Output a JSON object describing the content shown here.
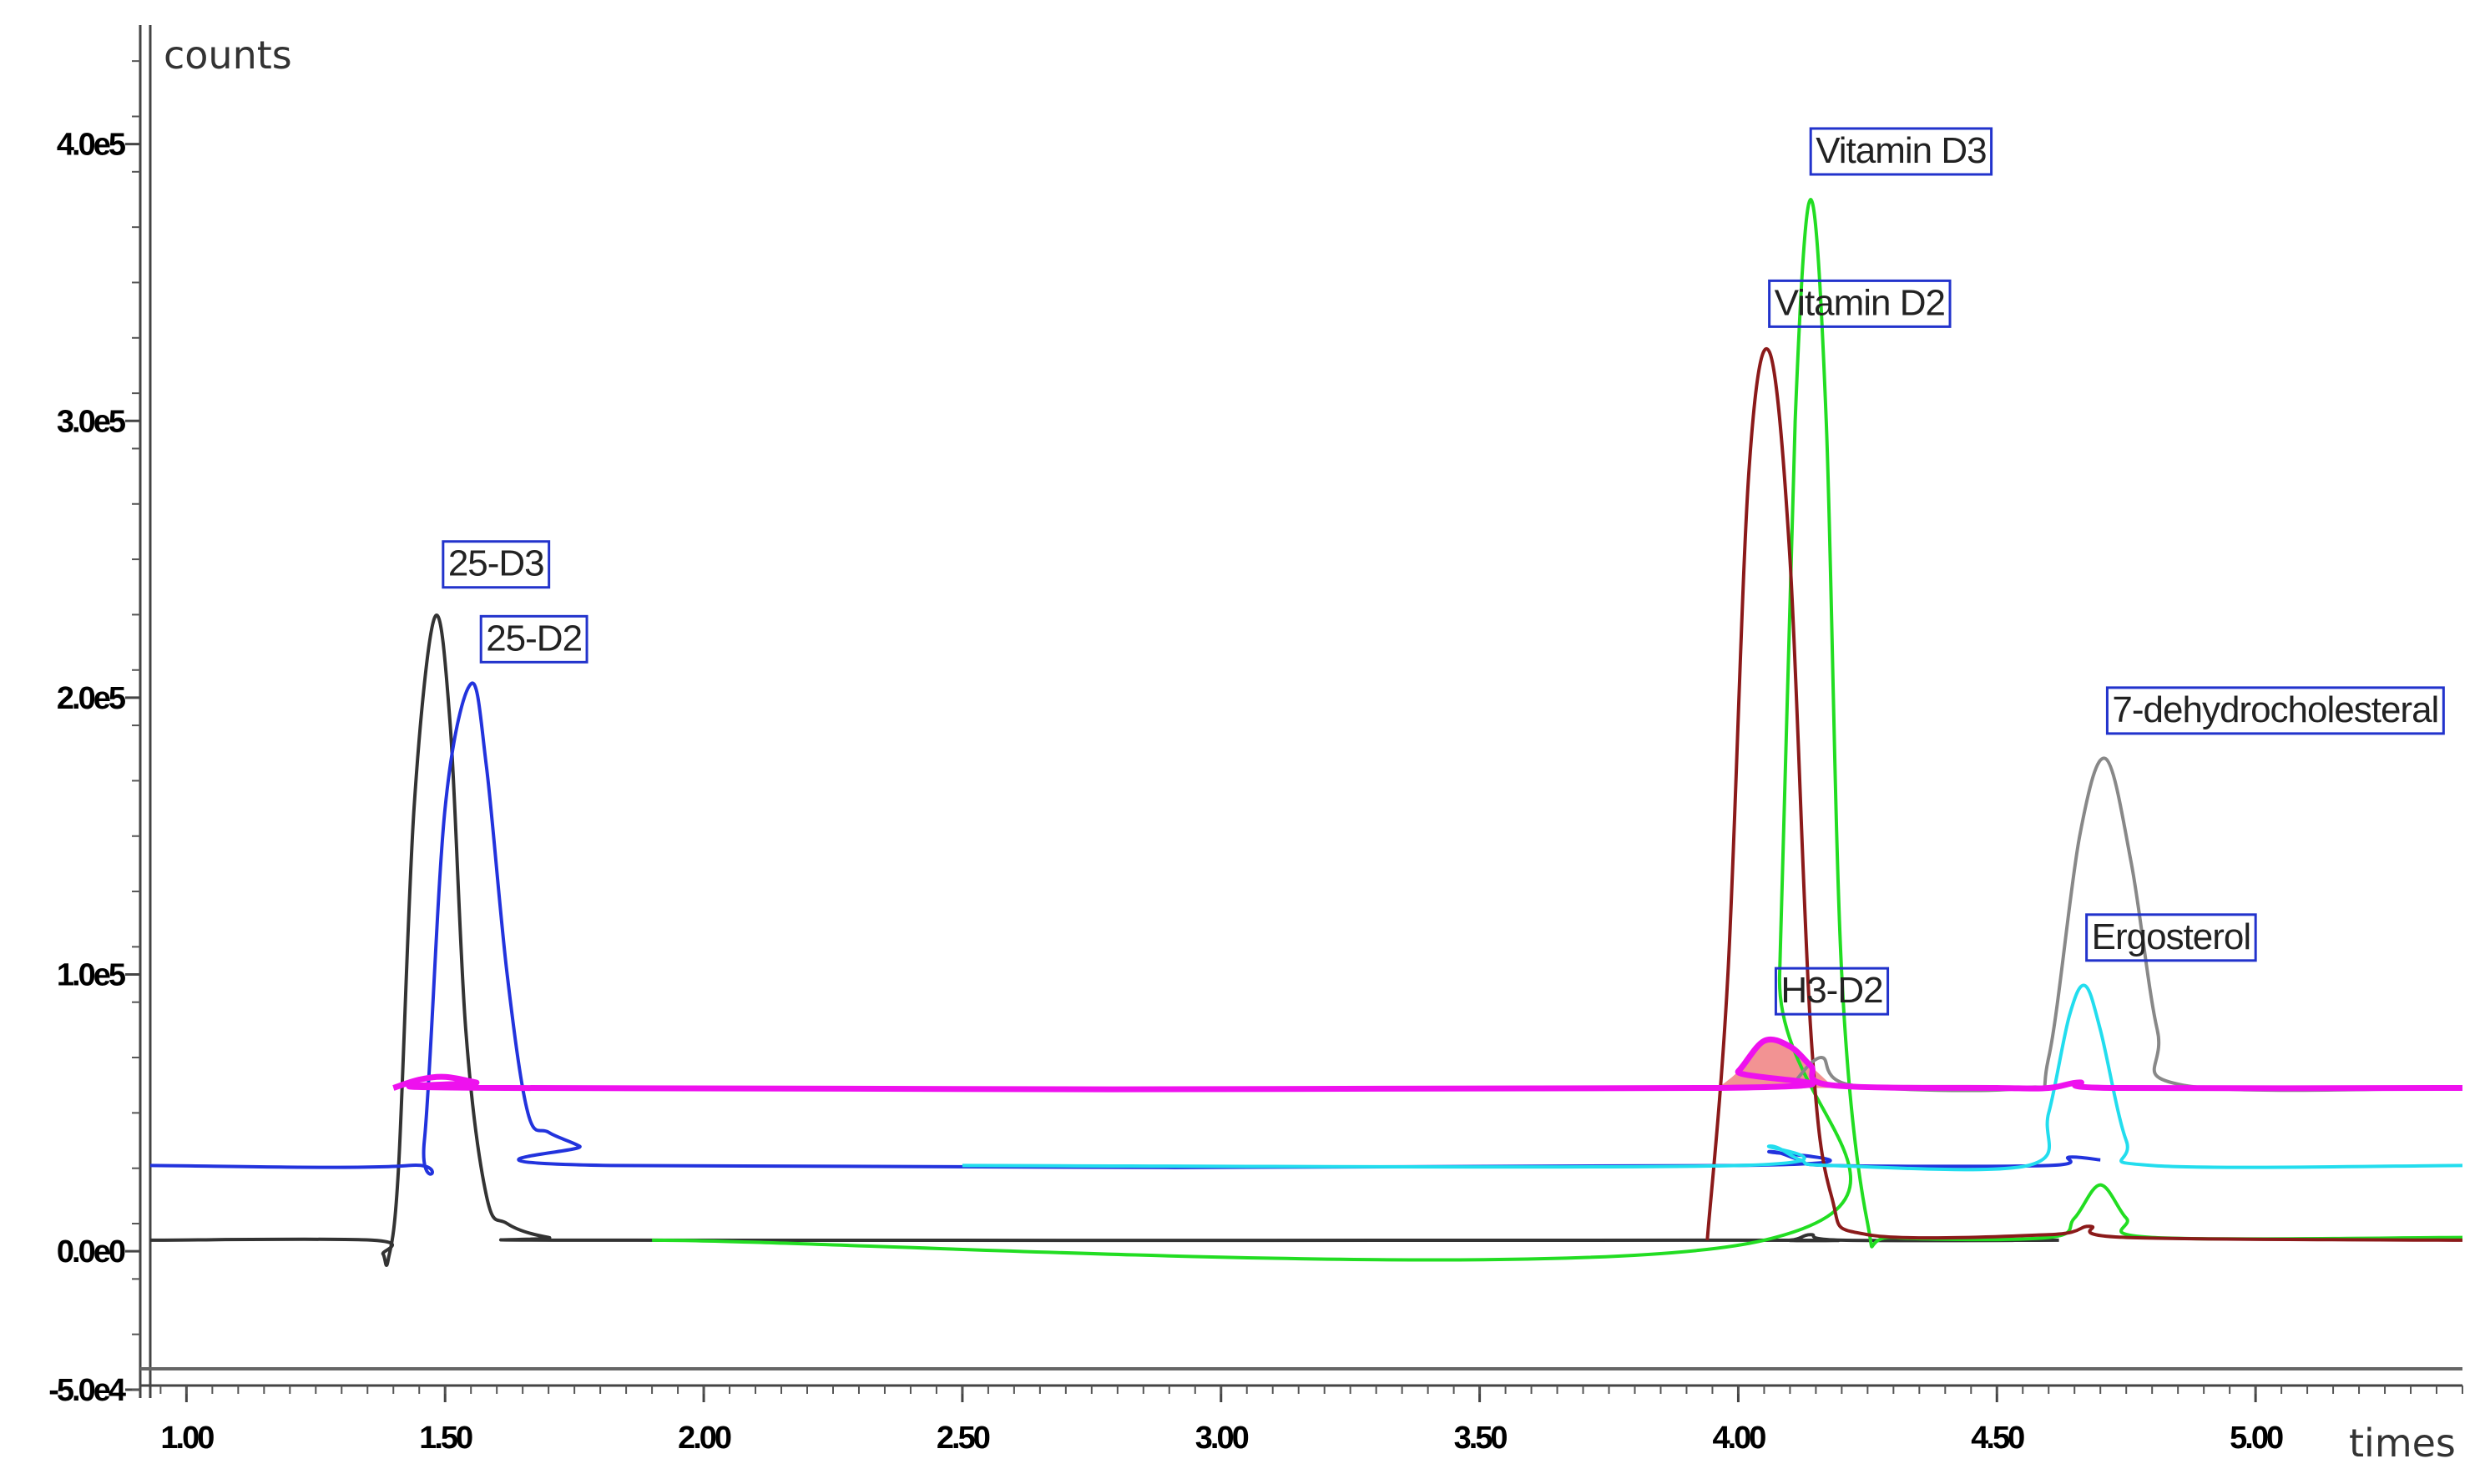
{
  "chart_data": {
    "type": "line",
    "title": "",
    "xlabel": "times",
    "ylabel": "counts",
    "xlim": [
      0.93,
      5.4
    ],
    "ylim": [
      -50000,
      440000
    ],
    "x_ticks": [
      1.0,
      1.5,
      2.0,
      2.5,
      3.0,
      3.5,
      4.0,
      4.5,
      5.0
    ],
    "x_tick_labels": [
      "1.00",
      "1.50",
      "2.00",
      "2.50",
      "3.00",
      "3.50",
      "4.00",
      "4.50",
      "5.00"
    ],
    "y_ticks": [
      -50000,
      0,
      100000,
      200000,
      300000,
      400000
    ],
    "y_tick_labels": [
      "-5.0e4",
      "0.0e0",
      "1.0e5",
      "2.0e5",
      "3.0e5",
      "4.0e5"
    ],
    "grid": false,
    "series": [
      {
        "name": "",
        "color": "#333333",
        "points": [
          [
            0.93,
            4000
          ],
          [
            1.36,
            4000
          ],
          [
            1.38,
            -1000
          ],
          [
            1.39,
            -3000
          ],
          [
            1.41,
            30000
          ],
          [
            1.44,
            160000
          ],
          [
            1.48,
            229000
          ],
          [
            1.51,
            190000
          ],
          [
            1.54,
            80000
          ],
          [
            1.58,
            20000
          ],
          [
            1.62,
            10000
          ],
          [
            1.7,
            5000
          ],
          [
            1.8,
            4000
          ],
          [
            4.0,
            4000
          ],
          [
            4.1,
            4000
          ],
          [
            4.14,
            6000
          ],
          [
            4.2,
            4000
          ],
          [
            4.62,
            4000
          ]
        ]
      },
      {
        "name": "",
        "color": "#2233dd",
        "points": [
          [
            0.93,
            31000
          ],
          [
            1.43,
            31000
          ],
          [
            1.46,
            40000
          ],
          [
            1.5,
            160000
          ],
          [
            1.55,
            205000
          ],
          [
            1.58,
            175000
          ],
          [
            1.62,
            100000
          ],
          [
            1.66,
            50000
          ],
          [
            1.7,
            43000
          ],
          [
            1.76,
            38000
          ],
          [
            1.82,
            31000
          ],
          [
            4.0,
            31000
          ],
          [
            4.06,
            36000
          ],
          [
            4.12,
            33000
          ],
          [
            4.18,
            31000
          ],
          [
            4.6,
            31000
          ],
          [
            4.64,
            34000
          ],
          [
            4.7,
            33000
          ]
        ]
      },
      {
        "name": "",
        "color": "#22dd22",
        "points": [
          [
            1.9,
            4000
          ],
          [
            4.05,
            4000
          ],
          [
            4.08,
            100000
          ],
          [
            4.11,
            300000
          ],
          [
            4.14,
            380000
          ],
          [
            4.17,
            300000
          ],
          [
            4.2,
            100000
          ],
          [
            4.25,
            10000
          ],
          [
            4.3,
            5000
          ],
          [
            4.6,
            5000
          ],
          [
            4.65,
            12000
          ],
          [
            4.7,
            24000
          ],
          [
            4.75,
            12000
          ],
          [
            4.8,
            5000
          ],
          [
            5.4,
            5000
          ]
        ]
      },
      {
        "name": "",
        "color": "#8b1a1a",
        "points": [
          [
            3.94,
            4000
          ],
          [
            3.98,
            100000
          ],
          [
            4.02,
            280000
          ],
          [
            4.06,
            325000
          ],
          [
            4.1,
            250000
          ],
          [
            4.14,
            80000
          ],
          [
            4.18,
            20000
          ],
          [
            4.25,
            6000
          ],
          [
            4.6,
            6000
          ],
          [
            4.68,
            9000
          ],
          [
            4.75,
            5000
          ],
          [
            5.4,
            4000
          ]
        ]
      },
      {
        "name": "",
        "color": "#888888",
        "points": [
          [
            4.1,
            59000
          ],
          [
            4.16,
            70000
          ],
          [
            4.22,
            60000
          ],
          [
            4.55,
            59000
          ],
          [
            4.6,
            70000
          ],
          [
            4.66,
            150000
          ],
          [
            4.71,
            178000
          ],
          [
            4.76,
            140000
          ],
          [
            4.81,
            80000
          ],
          [
            4.86,
            60000
          ],
          [
            5.4,
            59000
          ]
        ]
      },
      {
        "name": "",
        "color": "#22ddee",
        "points": [
          [
            2.5,
            31000
          ],
          [
            4.0,
            31000
          ],
          [
            4.06,
            38000
          ],
          [
            4.12,
            33000
          ],
          [
            4.18,
            31000
          ],
          [
            4.56,
            31000
          ],
          [
            4.6,
            50000
          ],
          [
            4.64,
            85000
          ],
          [
            4.67,
            96000
          ],
          [
            4.7,
            80000
          ],
          [
            4.75,
            40000
          ],
          [
            4.8,
            31000
          ],
          [
            5.4,
            31000
          ]
        ]
      },
      {
        "name": "",
        "color": "#ee11ee",
        "points": [
          [
            1.4,
            59000
          ],
          [
            1.45,
            62000
          ],
          [
            1.5,
            63000
          ],
          [
            1.56,
            61000
          ],
          [
            1.62,
            59000
          ],
          [
            3.96,
            59000
          ],
          [
            4.0,
            65000
          ],
          [
            4.05,
            76000
          ],
          [
            4.1,
            74000
          ],
          [
            4.14,
            67000
          ],
          [
            4.18,
            60000
          ],
          [
            4.5,
            59000
          ],
          [
            4.6,
            59000
          ],
          [
            4.66,
            61000
          ],
          [
            4.72,
            59000
          ],
          [
            5.4,
            59000
          ]
        ]
      }
    ],
    "shaded_peak": {
      "color": "#f08080",
      "points": [
        [
          3.96,
          59000
        ],
        [
          4.0,
          65000
        ],
        [
          4.05,
          76000
        ],
        [
          4.1,
          74000
        ],
        [
          4.14,
          67000
        ],
        [
          4.18,
          60000
        ]
      ]
    },
    "annotations": [
      {
        "text": "25-D3",
        "x": 1.48,
        "y": 229000,
        "color": "#222222"
      },
      {
        "text": "25-D2",
        "x": 1.55,
        "y": 205000,
        "color": "#222222"
      },
      {
        "text": "Vitamin D3",
        "x": 4.14,
        "y": 380000,
        "color": "#222222"
      },
      {
        "text": "Vitamin D2",
        "x": 4.06,
        "y": 325000,
        "color": "#222222"
      },
      {
        "text": "H3-D2",
        "x": 4.05,
        "y": 76000,
        "color": "#ee4444"
      },
      {
        "text": "7-dehydrocholesteral",
        "x": 4.71,
        "y": 178000,
        "color": "#222222"
      },
      {
        "text": "Ergosterol",
        "x": 4.67,
        "y": 96000,
        "color": "#222222"
      }
    ]
  }
}
